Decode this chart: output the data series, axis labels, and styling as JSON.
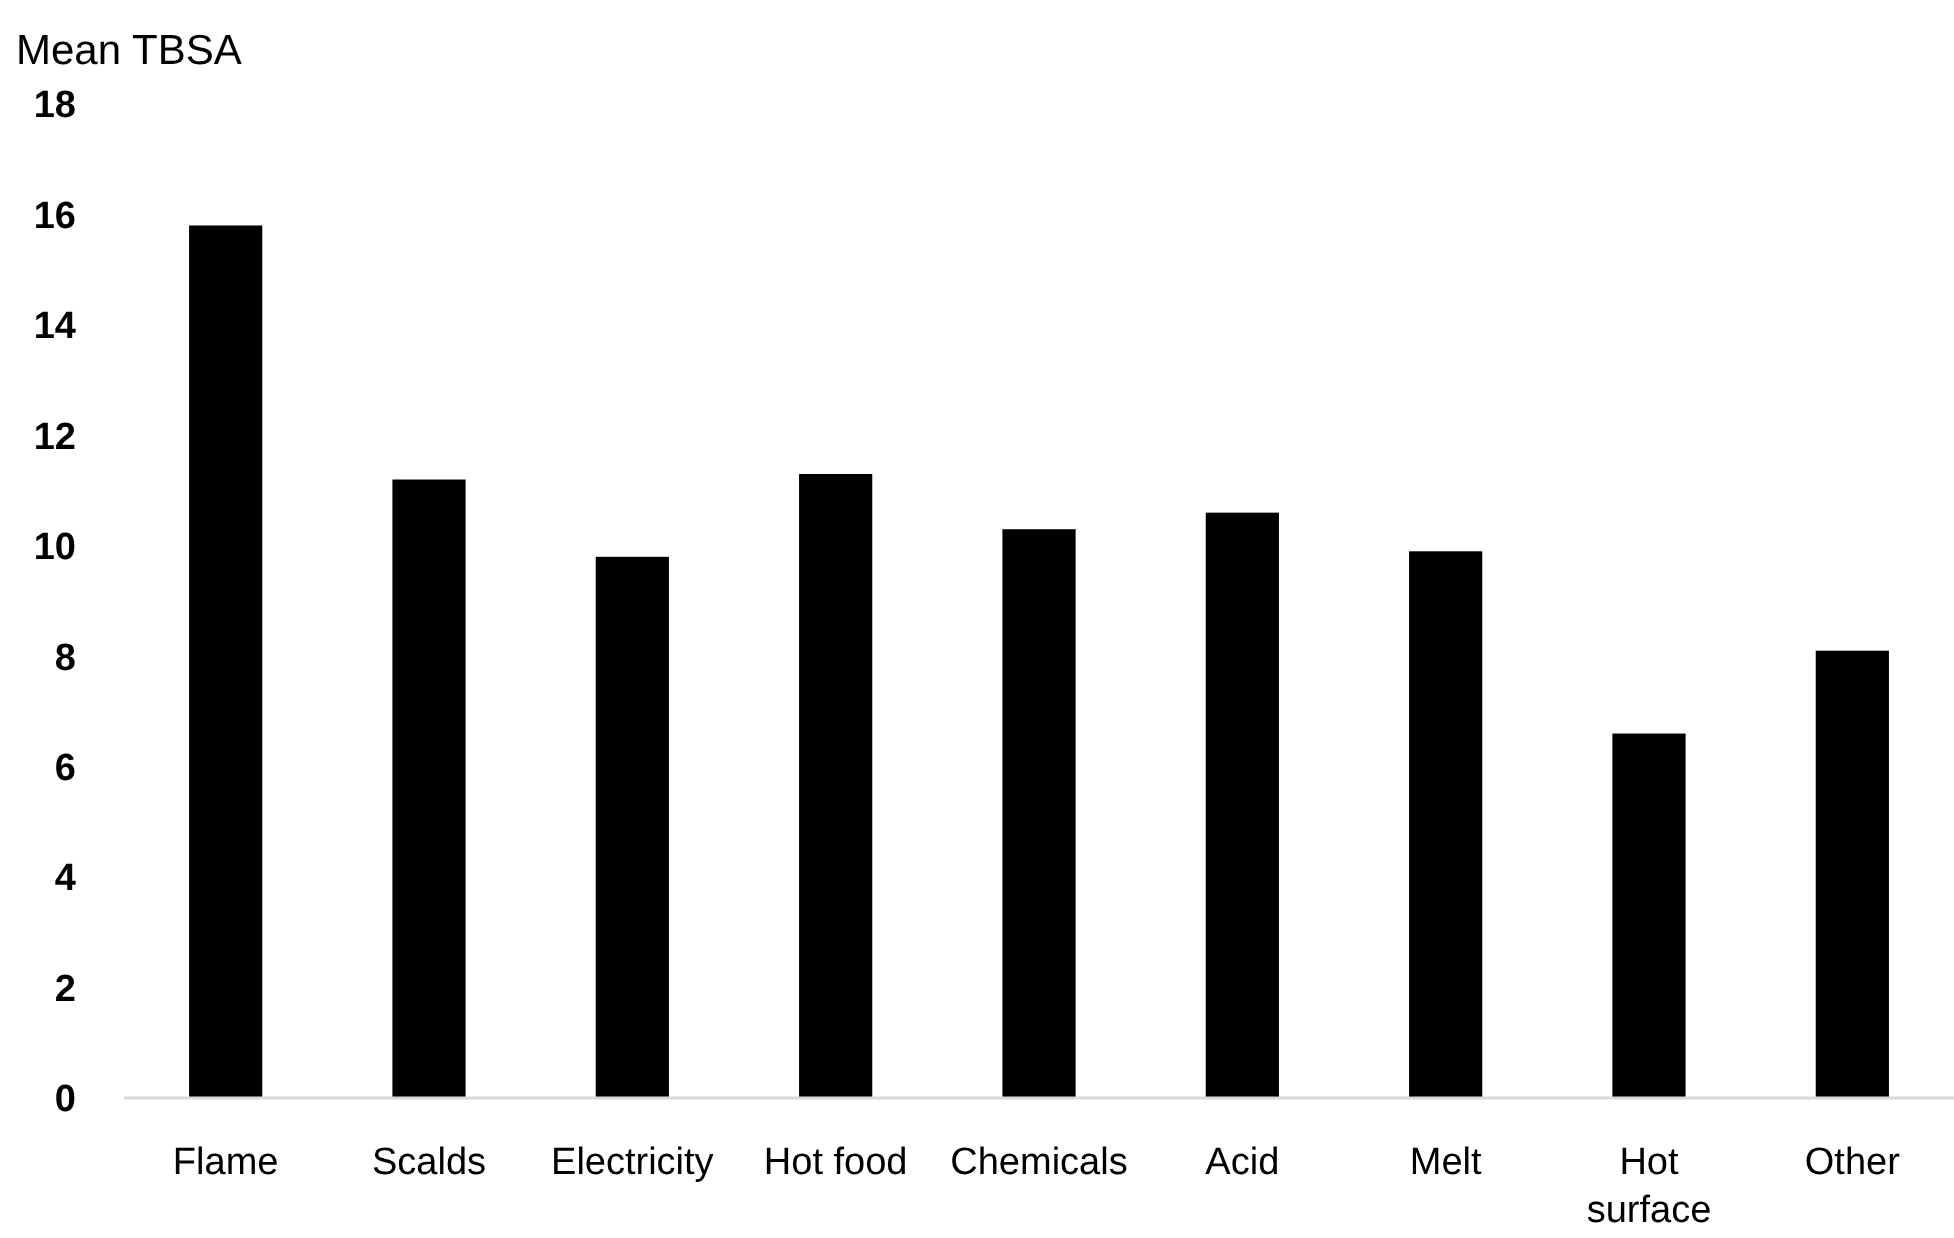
{
  "chart_data": {
    "type": "bar",
    "ylabel": "Mean TBSA",
    "categories": [
      "Flame",
      "Scalds",
      "Electricity",
      "Hot food",
      "Chemicals",
      "Acid",
      "Melt",
      "Hot surface",
      "Other"
    ],
    "values": [
      15.8,
      11.2,
      9.8,
      11.3,
      10.3,
      10.6,
      9.9,
      6.6,
      8.1
    ],
    "color": "#000000",
    "ylim": [
      0,
      18
    ],
    "yticks": [
      0,
      2,
      4,
      6,
      8,
      10,
      12,
      14,
      16,
      18
    ],
    "grid": false
  }
}
